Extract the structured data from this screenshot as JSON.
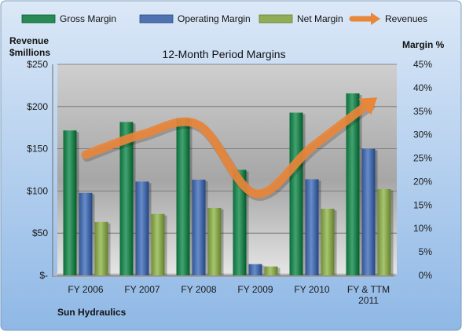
{
  "colors": {
    "gross_margin": "#2a8a57",
    "operating_margin": "#4f73b0",
    "net_margin": "#8fac56",
    "revenues": "#e8863a",
    "frame_bg_top": "#8fb8e6",
    "frame_bg_bottom": "#dbe8f7"
  },
  "chart_data": {
    "type": "bar",
    "title": "12-Month Period Margins",
    "ylabel_left": "Revenue\n$millions",
    "ylabel_right": "Margin %",
    "company": "Sun Hydraulics",
    "categories": [
      "FY 2006",
      "FY 2007",
      "FY 2008",
      "FY 2009",
      "FY 2010",
      "FY & TTM\n2011"
    ],
    "left_axis": {
      "min": 0,
      "max": 250,
      "step": 50,
      "tick_labels": [
        "$-",
        "$50",
        "$100",
        "$150",
        "$200",
        "$250"
      ]
    },
    "right_axis": {
      "min": 0,
      "max": 45,
      "step": 5,
      "tick_labels": [
        "0%",
        "5%",
        "10%",
        "15%",
        "20%",
        "25%",
        "30%",
        "35%",
        "40%",
        "45%"
      ]
    },
    "legend_position": "top",
    "gridlines": true,
    "series": [
      {
        "name": "Gross Margin",
        "type": "bar",
        "axis": "right",
        "color_key": "gross_margin",
        "values": [
          30.9,
          32.7,
          33.5,
          22.5,
          34.7,
          38.8
        ]
      },
      {
        "name": "Operating Margin",
        "type": "bar",
        "axis": "right",
        "color_key": "operating_margin",
        "values": [
          17.6,
          20.0,
          20.4,
          2.4,
          20.5,
          27.0
        ]
      },
      {
        "name": "Net Margin",
        "type": "bar",
        "axis": "right",
        "color_key": "net_margin",
        "values": [
          11.4,
          13.1,
          14.4,
          1.9,
          14.2,
          18.4
        ]
      },
      {
        "name": "Revenues",
        "type": "line",
        "axis": "left",
        "color_key": "revenues",
        "values": [
          143,
          167,
          178,
          97,
          152,
          203
        ]
      }
    ]
  }
}
